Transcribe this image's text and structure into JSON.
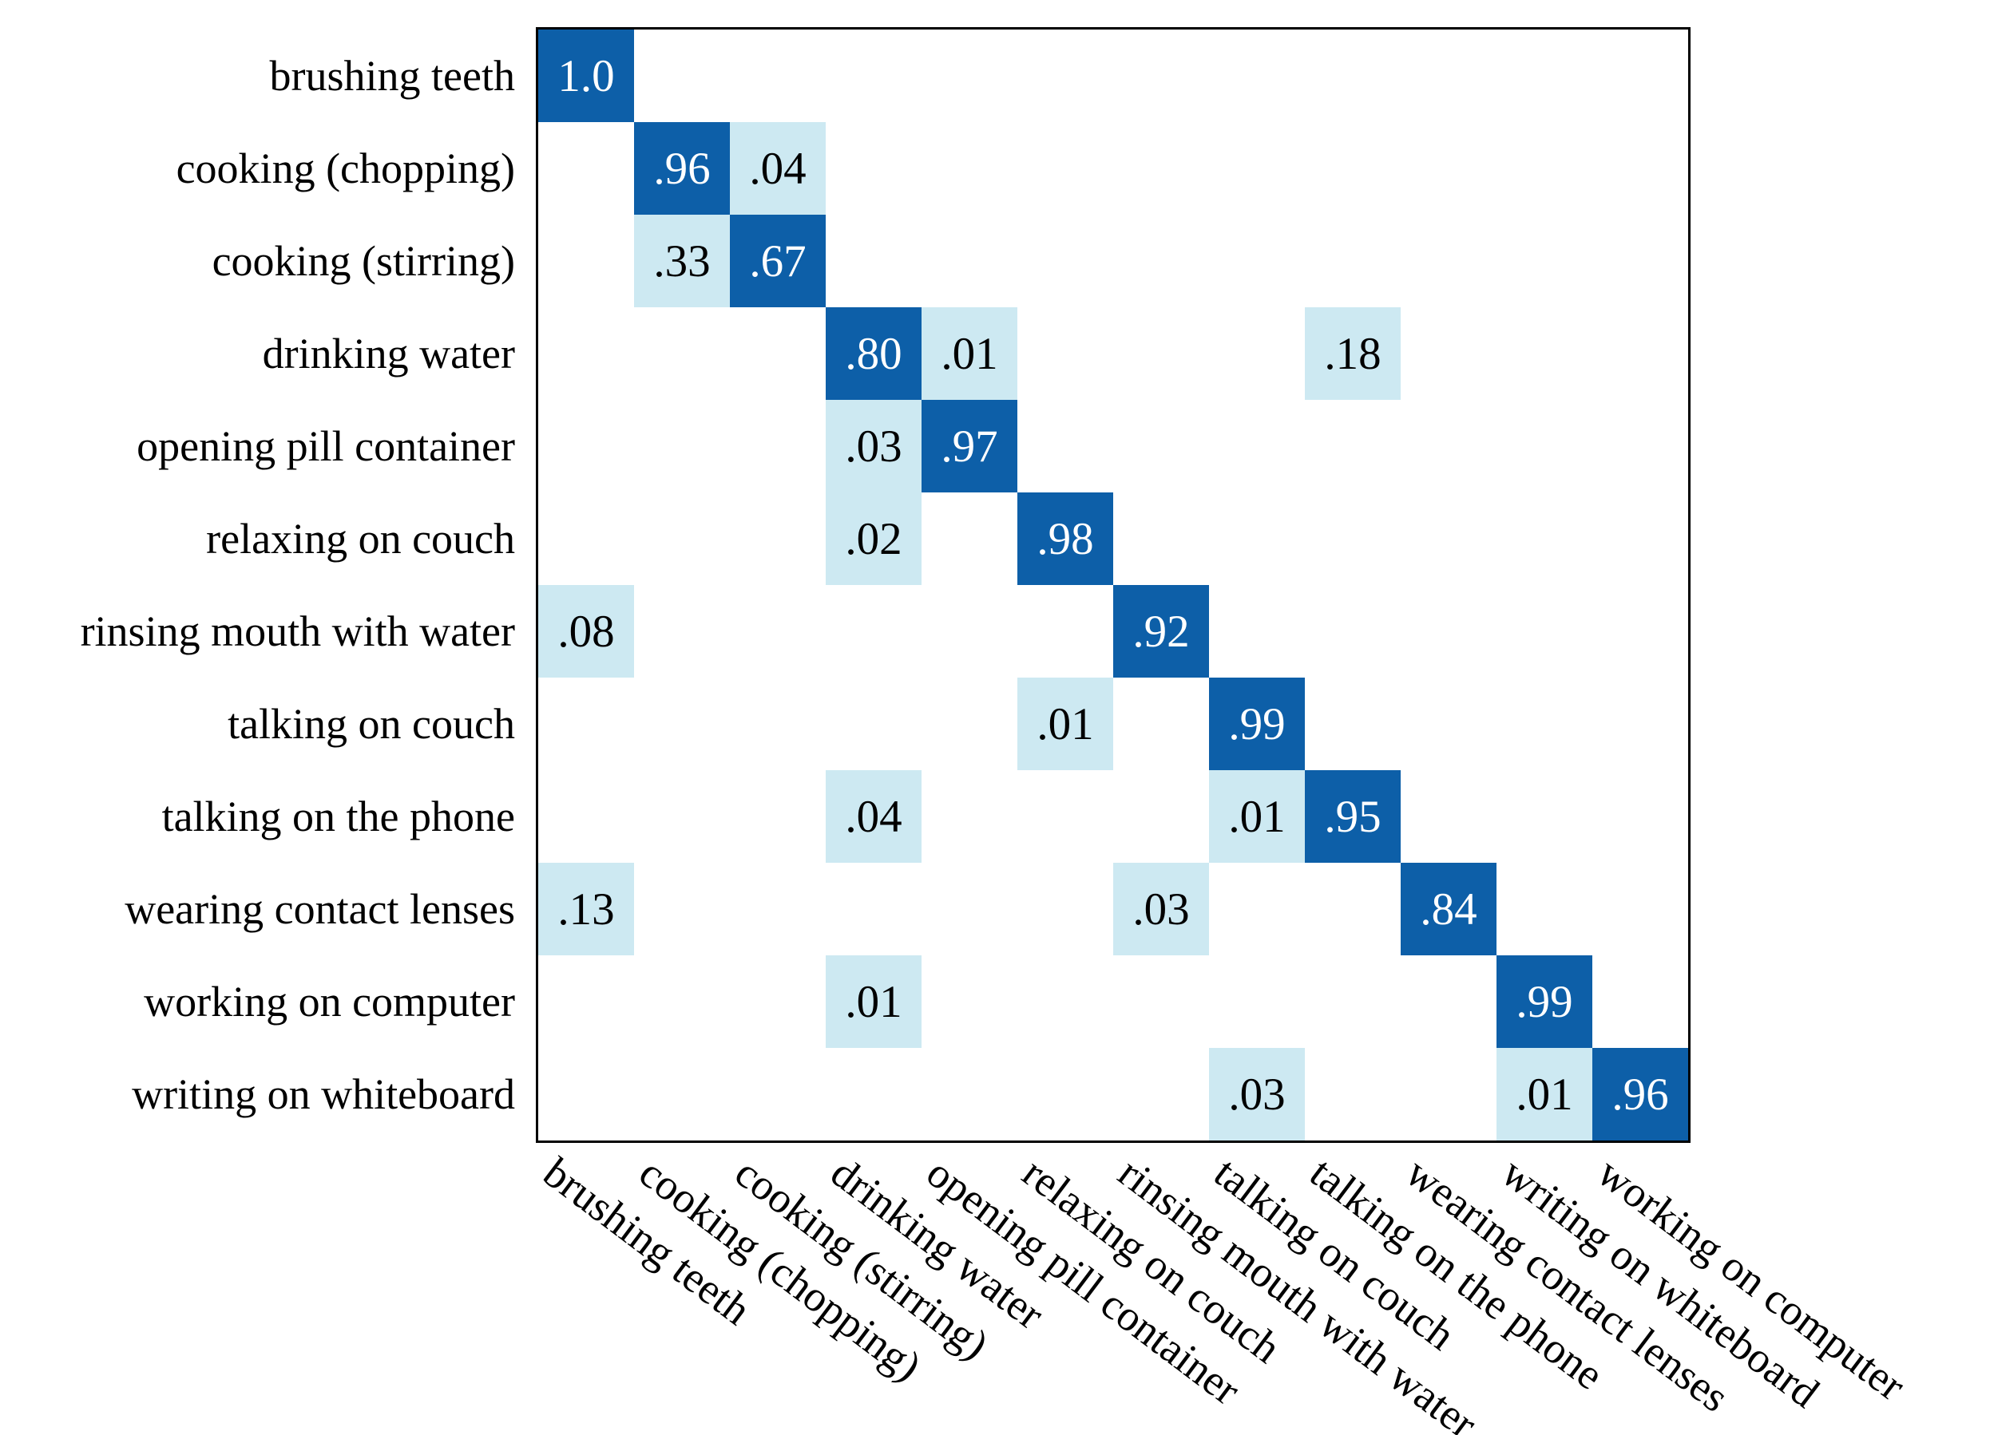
{
  "chart_data": {
    "type": "heatmap",
    "subtype": "confusion-matrix",
    "title": "",
    "xlabel": "",
    "ylabel": "",
    "legend": "none",
    "grid": false,
    "y_axis_labels": [
      "brushing teeth",
      "cooking (chopping)",
      "cooking (stirring)",
      "drinking water",
      "opening pill container",
      "relaxing on couch",
      "rinsing mouth with water",
      "talking on couch",
      "talking on the phone",
      "wearing contact lenses",
      "working on computer",
      "writing on whiteboard"
    ],
    "x_axis_labels": [
      "brushing teeth",
      "cooking (chopping)",
      "cooking (stirring)",
      "drinking water",
      "opening pill container",
      "relaxing on couch",
      "rinsing mouth with water",
      "talking on couch",
      "talking on the phone",
      "wearing contact lenses",
      "writing on whiteboard",
      "working on computer"
    ],
    "values": [
      [
        1.0,
        0,
        0,
        0,
        0,
        0,
        0,
        0,
        0,
        0,
        0,
        0
      ],
      [
        0,
        0.96,
        0.04,
        0,
        0,
        0,
        0,
        0,
        0,
        0,
        0,
        0
      ],
      [
        0,
        0.33,
        0.67,
        0,
        0,
        0,
        0,
        0,
        0,
        0,
        0,
        0
      ],
      [
        0,
        0,
        0,
        0.8,
        0.01,
        0,
        0,
        0,
        0.18,
        0,
        0,
        0
      ],
      [
        0,
        0,
        0,
        0.03,
        0.97,
        0,
        0,
        0,
        0,
        0,
        0,
        0
      ],
      [
        0,
        0,
        0,
        0.02,
        0,
        0.98,
        0,
        0,
        0,
        0,
        0,
        0
      ],
      [
        0.08,
        0,
        0,
        0,
        0,
        0,
        0.92,
        0,
        0,
        0,
        0,
        0
      ],
      [
        0,
        0,
        0,
        0,
        0,
        0.01,
        0,
        0.99,
        0,
        0,
        0,
        0
      ],
      [
        0,
        0,
        0,
        0.04,
        0,
        0,
        0,
        0.01,
        0.95,
        0,
        0,
        0
      ],
      [
        0.13,
        0,
        0,
        0,
        0,
        0,
        0.03,
        0,
        0,
        0.84,
        0,
        0
      ],
      [
        0,
        0,
        0,
        0.01,
        0,
        0,
        0,
        0,
        0,
        0,
        0.99,
        0
      ],
      [
        0,
        0,
        0,
        0,
        0,
        0,
        0,
        0.03,
        0,
        0,
        0.01,
        0.96
      ]
    ],
    "cells": [
      {
        "row": 0,
        "col": 0,
        "label": "1.0",
        "level": "high"
      },
      {
        "row": 1,
        "col": 1,
        "label": ".96",
        "level": "high"
      },
      {
        "row": 1,
        "col": 2,
        "label": ".04",
        "level": "low"
      },
      {
        "row": 2,
        "col": 1,
        "label": ".33",
        "level": "low"
      },
      {
        "row": 2,
        "col": 2,
        "label": ".67",
        "level": "high"
      },
      {
        "row": 3,
        "col": 3,
        "label": ".80",
        "level": "high"
      },
      {
        "row": 3,
        "col": 4,
        "label": ".01",
        "level": "low"
      },
      {
        "row": 3,
        "col": 8,
        "label": ".18",
        "level": "low"
      },
      {
        "row": 4,
        "col": 3,
        "label": ".03",
        "level": "low"
      },
      {
        "row": 4,
        "col": 4,
        "label": ".97",
        "level": "high"
      },
      {
        "row": 5,
        "col": 3,
        "label": ".02",
        "level": "low"
      },
      {
        "row": 5,
        "col": 5,
        "label": ".98",
        "level": "high"
      },
      {
        "row": 6,
        "col": 0,
        "label": ".08",
        "level": "low"
      },
      {
        "row": 6,
        "col": 6,
        "label": ".92",
        "level": "high"
      },
      {
        "row": 7,
        "col": 5,
        "label": ".01",
        "level": "low"
      },
      {
        "row": 7,
        "col": 7,
        "label": ".99",
        "level": "high"
      },
      {
        "row": 8,
        "col": 3,
        "label": ".04",
        "level": "low"
      },
      {
        "row": 8,
        "col": 7,
        "label": ".01",
        "level": "low"
      },
      {
        "row": 8,
        "col": 8,
        "label": ".95",
        "level": "high"
      },
      {
        "row": 9,
        "col": 0,
        "label": ".13",
        "level": "low"
      },
      {
        "row": 9,
        "col": 6,
        "label": ".03",
        "level": "low"
      },
      {
        "row": 9,
        "col": 9,
        "label": ".84",
        "level": "high"
      },
      {
        "row": 10,
        "col": 3,
        "label": ".01",
        "level": "low"
      },
      {
        "row": 10,
        "col": 10,
        "label": ".99",
        "level": "high"
      },
      {
        "row": 11,
        "col": 7,
        "label": ".03",
        "level": "low"
      },
      {
        "row": 11,
        "col": 10,
        "label": ".01",
        "level": "low"
      },
      {
        "row": 11,
        "col": 11,
        "label": ".96",
        "level": "high"
      }
    ],
    "colors": {
      "high_fill": "#0d5fa8",
      "low_fill": "#cde9f2",
      "high_text": "#ffffff",
      "low_text": "#000000",
      "border": "#000000",
      "background": "#ffffff"
    }
  }
}
